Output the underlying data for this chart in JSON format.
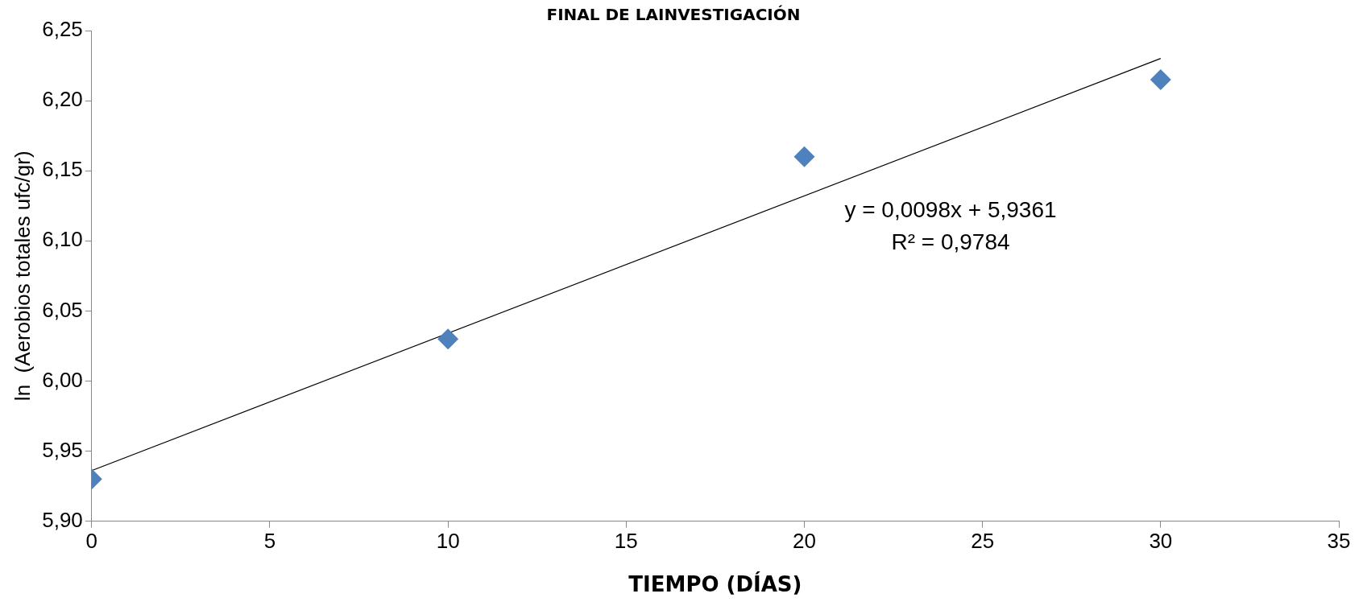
{
  "chart_data": {
    "type": "scatter",
    "title": "FINAL DE LAINVESTIGACIÓN",
    "xlabel": "TIEMPO (DÍAS)",
    "ylabel": "ln  (Aerobios totales ufc/gr)",
    "x": [
      0,
      10,
      20,
      30
    ],
    "series": [
      {
        "type": "scatter",
        "color": "#4f81bd",
        "marker": "diamond",
        "values": [
          5.93,
          6.03,
          6.16,
          6.215
        ]
      },
      {
        "type": "line",
        "color": "#000000",
        "marker": "none",
        "line_style": "solid",
        "x": [
          0,
          30
        ],
        "values": [
          5.9361,
          6.2301
        ]
      }
    ],
    "xlim": [
      0,
      35
    ],
    "xticks": [
      0,
      5,
      10,
      15,
      20,
      25,
      30,
      35
    ],
    "ylim": [
      5.9,
      6.25
    ],
    "yticks": [
      {
        "value": 5.9,
        "label": "5,90"
      },
      {
        "value": 5.95,
        "label": "5,95"
      },
      {
        "value": 6.0,
        "label": "6,00"
      },
      {
        "value": 6.05,
        "label": "6,05"
      },
      {
        "value": 6.1,
        "label": "6,10"
      },
      {
        "value": 6.15,
        "label": "6,15"
      },
      {
        "value": 6.2,
        "label": "6,20"
      },
      {
        "value": 6.25,
        "label": "6,25"
      }
    ],
    "grid": false,
    "legend": false,
    "annotations": [
      "y = 0,0098x + 5,9361",
      "R² = 0,9784"
    ]
  }
}
